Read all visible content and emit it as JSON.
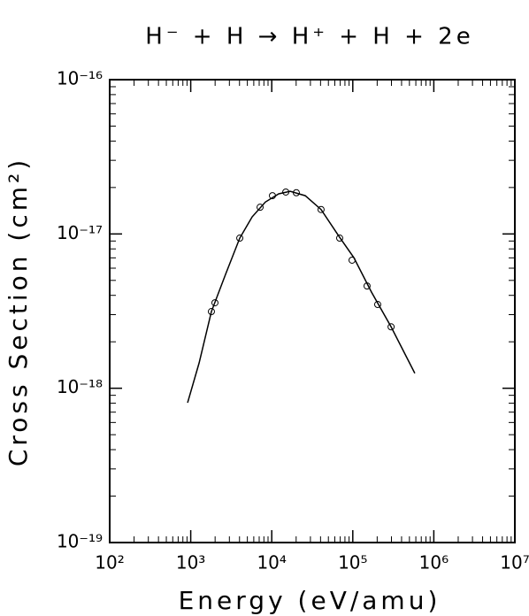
{
  "chart_data": {
    "type": "loglog",
    "title": "H⁻ + H → H⁺ + H + 2e",
    "x_label": "Energy (eV/amu)",
    "y_label": "Cross Section (cm²)",
    "log_x": true,
    "log_y": true,
    "color": "#000000",
    "xlim": [
      100,
      10000000
    ],
    "xticks": [
      {
        "value": 100,
        "label": "10²"
      },
      {
        "value": 1000,
        "label": "10³"
      },
      {
        "value": 10000,
        "label": "10⁴"
      },
      {
        "value": 100000,
        "label": "10⁵"
      },
      {
        "value": 1000000,
        "label": "10⁶"
      },
      {
        "value": 10000000,
        "label": "10⁷"
      }
    ],
    "ylim": [
      1e-19,
      1e-16
    ],
    "yticks": [
      {
        "value": 1e-19,
        "label": "10⁻¹⁹"
      },
      {
        "value": 1e-18,
        "label": "10⁻¹⁸"
      },
      {
        "value": 1e-17,
        "label": "10⁻¹⁷"
      },
      {
        "value": 1e-16,
        "label": "10⁻¹⁶"
      }
    ],
    "series": [
      {
        "marker": "circle",
        "x": [
          1800,
          1990,
          4030,
          7180,
          10200,
          14900,
          20100,
          40600,
          68900,
          98000,
          150000,
          203000,
          297000
        ],
        "values": [
          3.14e-18,
          3.58e-18,
          9.4e-18,
          1.49e-17,
          1.77e-17,
          1.87e-17,
          1.85e-17,
          1.44e-17,
          9.4e-18,
          6.76e-18,
          4.6e-18,
          3.49e-18,
          2.5e-18
        ]
      },
      {
        "marker": "line",
        "x": [
          915,
          1270,
          1800,
          2690,
          4030,
          5730,
          8340,
          12200,
          16900,
          25900,
          40600,
          68900,
          103000,
          170000,
          297000,
          583000
        ],
        "values": [
          8.05e-19,
          1.46e-18,
          3.14e-18,
          5.47e-18,
          9.4e-18,
          1.29e-17,
          1.61e-17,
          1.82e-17,
          1.89e-17,
          1.77e-17,
          1.44e-17,
          9.5e-18,
          7.03e-18,
          4.2e-18,
          2.5e-18,
          1.25e-18
        ]
      }
    ]
  }
}
